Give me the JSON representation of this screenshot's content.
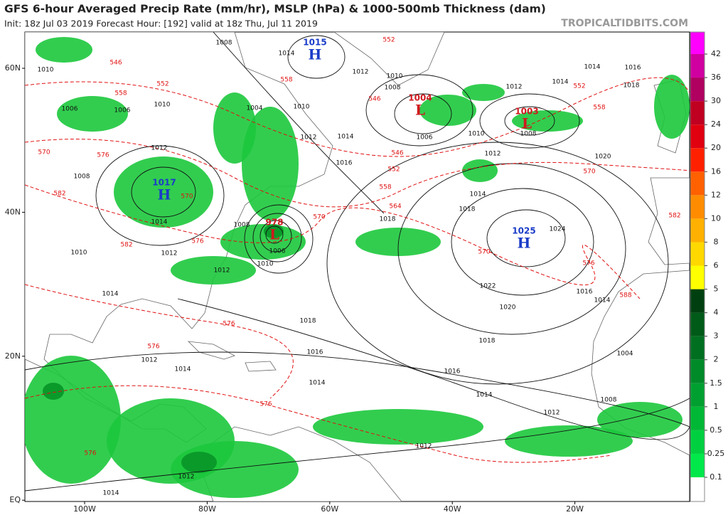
{
  "header": {
    "title": "GFS 6-hour Averaged Precip Rate (mm/hr), MSLP (hPa) & 1000-500mb Thickness (dam)",
    "subtitle": "Init: 18z Jul 03 2019   Forecast Hour: [192]   valid at 18z Thu, Jul 11 2019",
    "site": "TROPICALTIDBITS.COM"
  },
  "map": {
    "lat_labels": [
      {
        "value": 60,
        "label": "60N"
      },
      {
        "value": 40,
        "label": "40N"
      },
      {
        "value": 20,
        "label": "20N"
      },
      {
        "value": 0,
        "label": "EQ"
      }
    ],
    "lon_labels": [
      {
        "value": -100,
        "label": "100W"
      },
      {
        "value": -80,
        "label": "80W"
      },
      {
        "value": -60,
        "label": "60W"
      },
      {
        "value": -40,
        "label": "40W"
      },
      {
        "value": -20,
        "label": "20W"
      }
    ],
    "colorbar": {
      "ticks": [
        0.1,
        0.25,
        0.5,
        1,
        1.5,
        2,
        3,
        4,
        5,
        6,
        8,
        10,
        12,
        16,
        20,
        24,
        30,
        36,
        42
      ],
      "colors": [
        "#ffffff",
        "#00e84a",
        "#00d040",
        "#00b835",
        "#00a030",
        "#008a28",
        "#007020",
        "#005a18",
        "#004010",
        "#ffff00",
        "#ffd800",
        "#ffb000",
        "#ff8c00",
        "#ff6000",
        "#ff2000",
        "#e00010",
        "#c00020",
        "#b00060",
        "#d000a0",
        "#ff00ff"
      ]
    },
    "pressure_centers": [
      {
        "value": "1015",
        "kind": "H"
      },
      {
        "value": "1004",
        "kind": "L"
      },
      {
        "value": "1003",
        "kind": "L"
      },
      {
        "value": "1017",
        "kind": "H"
      },
      {
        "value": "978",
        "kind": "L"
      },
      {
        "value": "1025",
        "kind": "H"
      }
    ],
    "isobar_labels": [
      "1008",
      "1014",
      "1012",
      "1010",
      "1008",
      "1012",
      "1014",
      "1014",
      "1016",
      "1018",
      "1010",
      "1008",
      "1006",
      "1012",
      "1020",
      "1016",
      "1014",
      "1018",
      "1018",
      "1024",
      "1022",
      "1020",
      "1016",
      "1014",
      "1018",
      "1018",
      "1016",
      "1016",
      "1014",
      "1012",
      "1012",
      "1012",
      "1014",
      "1004",
      "1008",
      "1012",
      "1014",
      "1010",
      "1012",
      "1010",
      "1006",
      "1008",
      "1010",
      "1012",
      "1014",
      "1004",
      "1006",
      "1006",
      "1010",
      "1012",
      "1014",
      "1008",
      "1010",
      "1012",
      "1014",
      "1014"
    ],
    "thickness_labels": [
      "552",
      "546",
      "552",
      "558",
      "558",
      "546",
      "552",
      "558",
      "546",
      "552",
      "558",
      "564",
      "570",
      "570",
      "570",
      "576",
      "588",
      "582",
      "570",
      "576",
      "582",
      "582",
      "576",
      "570",
      "576",
      "576",
      "576",
      "576"
    ]
  }
}
